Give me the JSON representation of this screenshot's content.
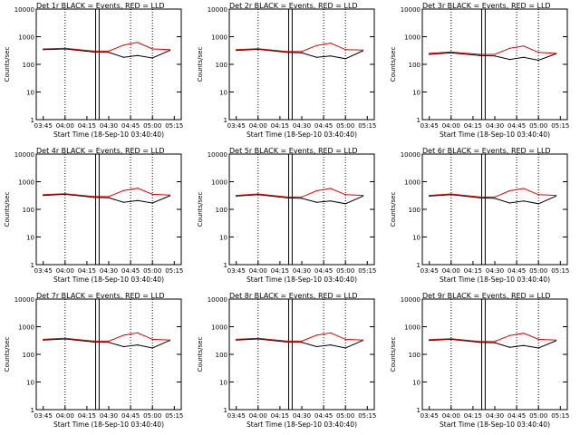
{
  "chart_data": [
    {
      "type": "line",
      "title": "Det 1r BLACK = Events, RED = LLD",
      "ylabel": "Counts/sec",
      "xlabel": "Start Time (18-Sep-10 03:40:40)",
      "x_ticks": [
        "03:45",
        "04:00",
        "04:15",
        "04:30",
        "04:45",
        "05:00",
        "05:15"
      ],
      "y_ticks": [
        "1",
        "10",
        "100",
        "1000",
        "10000"
      ],
      "ylim": [
        1,
        10000
      ],
      "y_scale": "log",
      "series": [
        {
          "color": "#000000",
          "x": [
            3.75,
            4.0,
            4.33,
            4.5,
            4.67,
            4.83,
            5.0,
            5.2
          ],
          "values": [
            340,
            360,
            280,
            270,
            180,
            210,
            170,
            320
          ]
        },
        {
          "color": "#e00000",
          "x": [
            3.75,
            4.0,
            4.33,
            4.5,
            4.67,
            4.83,
            5.0,
            5.2
          ],
          "values": [
            360,
            380,
            300,
            300,
            500,
            620,
            360,
            340
          ]
        }
      ]
    },
    {
      "type": "line",
      "title": "Det 2r BLACK = Events, RED = LLD",
      "ylabel": "Counts/sec",
      "xlabel": "Start Time (18-Sep-10 03:40:40)",
      "x_ticks": [
        "03:45",
        "04:00",
        "04:15",
        "04:30",
        "04:45",
        "05:00",
        "05:15"
      ],
      "y_ticks": [
        "1",
        "10",
        "100",
        "1000",
        "10000"
      ],
      "ylim": [
        1,
        10000
      ],
      "y_scale": "log",
      "series": [
        {
          "color": "#000000",
          "x": [
            3.75,
            4.0,
            4.33,
            4.5,
            4.67,
            4.83,
            5.0,
            5.2
          ],
          "values": [
            320,
            350,
            270,
            260,
            180,
            200,
            160,
            310
          ]
        },
        {
          "color": "#e00000",
          "x": [
            3.75,
            4.0,
            4.33,
            4.5,
            4.67,
            4.83,
            5.0,
            5.2
          ],
          "values": [
            340,
            370,
            290,
            290,
            480,
            590,
            340,
            330
          ]
        }
      ]
    },
    {
      "type": "line",
      "title": "Det 3r BLACK = Events, RED = LLD",
      "ylabel": "Counts/sec",
      "xlabel": "Start Time (18-Sep-10 03:40:40)",
      "x_ticks": [
        "03:45",
        "04:00",
        "04:15",
        "04:30",
        "04:45",
        "05:00",
        "05:15"
      ],
      "y_ticks": [
        "1",
        "10",
        "100",
        "1000",
        "10000"
      ],
      "ylim": [
        1,
        10000
      ],
      "y_scale": "log",
      "series": [
        {
          "color": "#000000",
          "x": [
            3.75,
            4.0,
            4.33,
            4.5,
            4.67,
            4.83,
            5.0,
            5.2
          ],
          "values": [
            230,
            260,
            210,
            200,
            150,
            180,
            140,
            240
          ]
        },
        {
          "color": "#e00000",
          "x": [
            3.75,
            4.0,
            4.33,
            4.5,
            4.67,
            4.83,
            5.0,
            5.2
          ],
          "values": [
            250,
            280,
            230,
            230,
            380,
            460,
            270,
            250
          ]
        }
      ]
    },
    {
      "type": "line",
      "title": "Det 4r BLACK = Events, RED = LLD",
      "ylabel": "Counts/sec",
      "xlabel": "Start Time (18-Sep-10 03:40:40)",
      "x_ticks": [
        "03:45",
        "04:00",
        "04:15",
        "04:30",
        "04:45",
        "05:00",
        "05:15"
      ],
      "y_ticks": [
        "1",
        "10",
        "100",
        "1000",
        "10000"
      ],
      "ylim": [
        1,
        10000
      ],
      "y_scale": "log",
      "series": [
        {
          "color": "#000000",
          "x": [
            3.75,
            4.0,
            4.33,
            4.5,
            4.67,
            4.83,
            5.0,
            5.2
          ],
          "values": [
            320,
            350,
            270,
            260,
            180,
            210,
            170,
            310
          ]
        },
        {
          "color": "#e00000",
          "x": [
            3.75,
            4.0,
            4.33,
            4.5,
            4.67,
            4.83,
            5.0,
            5.2
          ],
          "values": [
            340,
            370,
            290,
            290,
            480,
            580,
            350,
            330
          ]
        }
      ]
    },
    {
      "type": "line",
      "title": "Det 5r BLACK = Events, RED = LLD",
      "ylabel": "Counts/sec",
      "xlabel": "Start Time (18-Sep-10 03:40:40)",
      "x_ticks": [
        "03:45",
        "04:00",
        "04:15",
        "04:30",
        "04:45",
        "05:00",
        "05:15"
      ],
      "y_ticks": [
        "1",
        "10",
        "100",
        "1000",
        "10000"
      ],
      "ylim": [
        1,
        10000
      ],
      "y_scale": "log",
      "series": [
        {
          "color": "#000000",
          "x": [
            3.75,
            4.0,
            4.33,
            4.5,
            4.67,
            4.83,
            5.0,
            5.2
          ],
          "values": [
            300,
            340,
            260,
            250,
            180,
            200,
            160,
            300
          ]
        },
        {
          "color": "#e00000",
          "x": [
            3.75,
            4.0,
            4.33,
            4.5,
            4.67,
            4.83,
            5.0,
            5.2
          ],
          "values": [
            320,
            360,
            280,
            280,
            470,
            570,
            340,
            320
          ]
        }
      ]
    },
    {
      "type": "line",
      "title": "Det 6r BLACK = Events, RED = LLD",
      "ylabel": "Counts/sec",
      "xlabel": "Start Time (18-Sep-10 03:40:40)",
      "x_ticks": [
        "03:45",
        "04:00",
        "04:15",
        "04:30",
        "04:45",
        "05:00",
        "05:15"
      ],
      "y_ticks": [
        "1",
        "10",
        "100",
        "1000",
        "10000"
      ],
      "ylim": [
        1,
        10000
      ],
      "y_scale": "log",
      "series": [
        {
          "color": "#000000",
          "x": [
            3.75,
            4.0,
            4.33,
            4.5,
            4.67,
            4.83,
            5.0,
            5.2
          ],
          "values": [
            300,
            340,
            260,
            250,
            170,
            200,
            160,
            300
          ]
        },
        {
          "color": "#e00000",
          "x": [
            3.75,
            4.0,
            4.33,
            4.5,
            4.67,
            4.83,
            5.0,
            5.2
          ],
          "values": [
            320,
            360,
            280,
            280,
            470,
            570,
            340,
            320
          ]
        }
      ]
    },
    {
      "type": "line",
      "title": "Det 7r BLACK = Events, RED = LLD",
      "ylabel": "Counts/sec",
      "xlabel": "Start Time (18-Sep-10 03:40:40)",
      "x_ticks": [
        "03:45",
        "04:00",
        "04:15",
        "04:30",
        "04:45",
        "05:00",
        "05:15"
      ],
      "y_ticks": [
        "1",
        "10",
        "100",
        "1000",
        "10000"
      ],
      "ylim": [
        1,
        10000
      ],
      "y_scale": "log",
      "series": [
        {
          "color": "#000000",
          "x": [
            3.75,
            4.0,
            4.33,
            4.5,
            4.67,
            4.83,
            5.0,
            5.2
          ],
          "values": [
            330,
            360,
            280,
            270,
            190,
            220,
            170,
            320
          ]
        },
        {
          "color": "#e00000",
          "x": [
            3.75,
            4.0,
            4.33,
            4.5,
            4.67,
            4.83,
            5.0,
            5.2
          ],
          "values": [
            350,
            380,
            300,
            300,
            490,
            600,
            350,
            330
          ]
        }
      ]
    },
    {
      "type": "line",
      "title": "Det 8r BLACK = Events, RED = LLD",
      "ylabel": "Counts/sec",
      "xlabel": "Start Time (18-Sep-10 03:40:40)",
      "x_ticks": [
        "03:45",
        "04:00",
        "04:15",
        "04:30",
        "04:45",
        "05:00",
        "05:15"
      ],
      "y_ticks": [
        "1",
        "10",
        "100",
        "1000",
        "10000"
      ],
      "ylim": [
        1,
        10000
      ],
      "y_scale": "log",
      "series": [
        {
          "color": "#000000",
          "x": [
            3.75,
            4.0,
            4.33,
            4.5,
            4.67,
            4.83,
            5.0,
            5.2
          ],
          "values": [
            330,
            360,
            280,
            270,
            190,
            220,
            170,
            320
          ]
        },
        {
          "color": "#e00000",
          "x": [
            3.75,
            4.0,
            4.33,
            4.5,
            4.67,
            4.83,
            5.0,
            5.2
          ],
          "values": [
            350,
            380,
            300,
            300,
            490,
            600,
            350,
            330
          ]
        }
      ]
    },
    {
      "type": "line",
      "title": "Det 9r BLACK = Events, RED = LLD",
      "ylabel": "Counts/sec",
      "xlabel": "Start Time (18-Sep-10 03:40:40)",
      "x_ticks": [
        "03:45",
        "04:00",
        "04:15",
        "04:30",
        "04:45",
        "05:00",
        "05:15"
      ],
      "y_ticks": [
        "1",
        "10",
        "100",
        "1000",
        "10000"
      ],
      "ylim": [
        1,
        10000
      ],
      "y_scale": "log",
      "series": [
        {
          "color": "#000000",
          "x": [
            3.75,
            4.0,
            4.33,
            4.5,
            4.67,
            4.83,
            5.0,
            5.2
          ],
          "values": [
            320,
            350,
            270,
            260,
            180,
            210,
            170,
            310
          ]
        },
        {
          "color": "#e00000",
          "x": [
            3.75,
            4.0,
            4.33,
            4.5,
            4.67,
            4.83,
            5.0,
            5.2
          ],
          "values": [
            340,
            370,
            290,
            290,
            480,
            580,
            350,
            330
          ]
        }
      ]
    }
  ]
}
